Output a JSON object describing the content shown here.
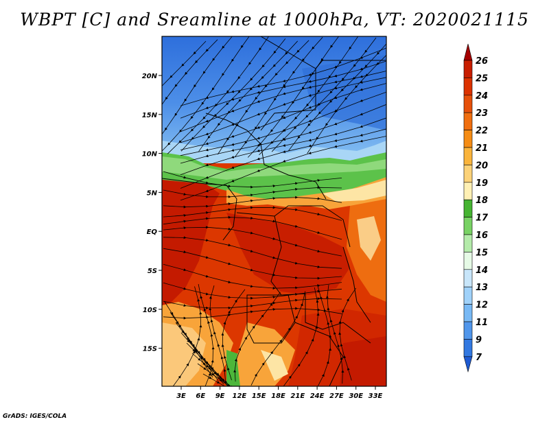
{
  "title": "WBPT [C] and Sreamline at 1000hPa, VT: 2020021115",
  "credit": "GrADS: IGES/COLA",
  "lat_ticks": [
    "20N",
    "15N",
    "10N",
    "5N",
    "EQ",
    "5S",
    "10S",
    "15S"
  ],
  "lon_ticks": [
    "3E",
    "6E",
    "9E",
    "12E",
    "15E",
    "18E",
    "21E",
    "24E",
    "27E",
    "30E",
    "33E"
  ],
  "colorbar": {
    "labels": [
      "26",
      "25",
      "24",
      "23",
      "22",
      "21",
      "20",
      "19",
      "18",
      "17",
      "16",
      "15",
      "14",
      "13",
      "12",
      "11",
      "9",
      "7"
    ],
    "colors": [
      "#a50000",
      "#c81e00",
      "#dc3200",
      "#e6500a",
      "#f06e0f",
      "#f58c14",
      "#fab43c",
      "#fcd278",
      "#fff0b4",
      "#46b432",
      "#78d264",
      "#b4ebaa",
      "#e6fae6",
      "#c8e6fa",
      "#a0d2fa",
      "#78b9f5",
      "#5096eb",
      "#3278e1",
      "#1e5ad2"
    ]
  },
  "colors": {
    "deep_red": "#c41a00",
    "red": "#dc3700",
    "orange": "#ee6d10",
    "light_orange": "#f8a43a",
    "pale_yellow": "#fde5a5",
    "green": "#4cb63a",
    "light_green": "#8fd97c",
    "blue": "#3f7fe0",
    "light_blue": "#7fb7f1"
  }
}
